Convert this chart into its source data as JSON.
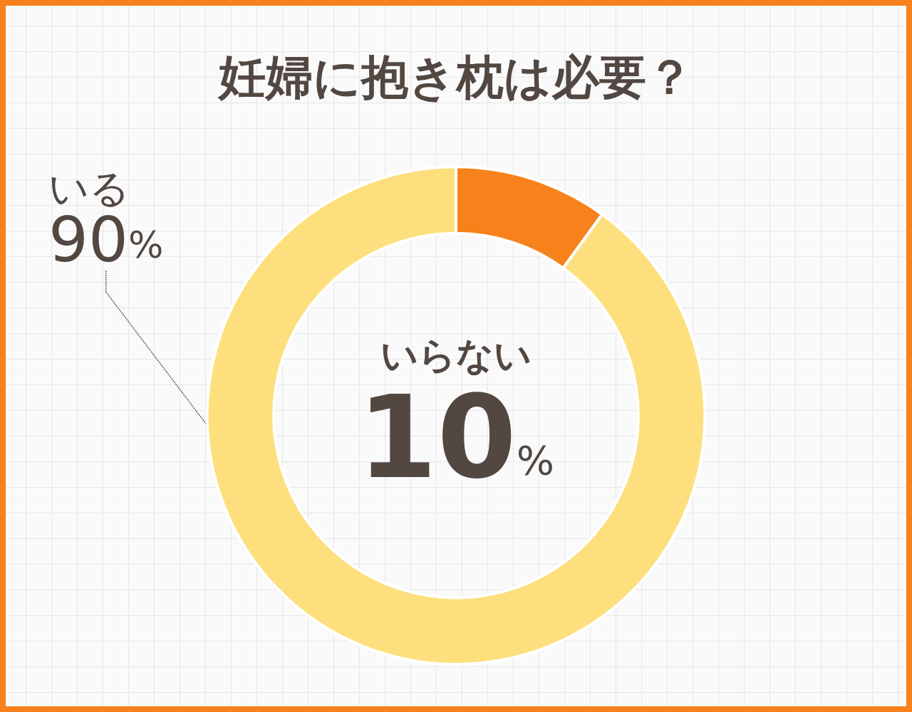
{
  "chart_data": {
    "type": "donut",
    "title": "妊婦に抱き枕は必要？",
    "categories": [
      "いらない",
      "いる"
    ],
    "values": [
      10,
      90
    ],
    "colors": [
      "#f7821b",
      "#fde07d"
    ],
    "value_labels": [
      "10%",
      "90%"
    ]
  }
}
